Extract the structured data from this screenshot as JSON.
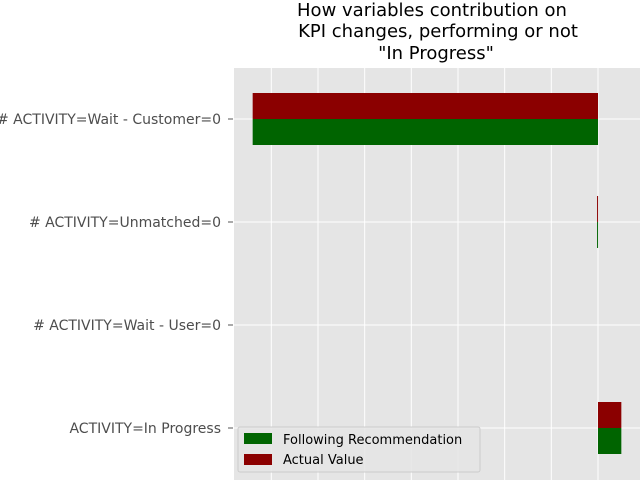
{
  "chart_data": {
    "type": "bar",
    "orientation": "horizontal",
    "title_lines": [
      "How variables contribution on",
      "KPI changes, performing or not",
      "\"In Progress\""
    ],
    "xlabel": "",
    "ylabel": "",
    "categories": [
      "# ACTIVITY=Wait - Customer=0",
      "# ACTIVITY=Unmatched=0",
      "# ACTIVITY=Wait - User=0",
      "ACTIVITY=In Progress"
    ],
    "series": [
      {
        "name": "Following Recommendation",
        "color": "#006400",
        "values": [
          -0.74,
          -0.002,
          0.0,
          0.05
        ]
      },
      {
        "name": "Actual Value",
        "color": "#8b0000",
        "values": [
          -0.74,
          -0.002,
          0.0,
          0.05
        ]
      }
    ],
    "xlim": [
      -0.78,
      0.09
    ],
    "x_grid_values": [
      -0.7,
      -0.6,
      -0.5,
      -0.4,
      -0.3,
      -0.2,
      -0.1,
      0.0
    ],
    "x_tick_labels_visible": false,
    "grid": true,
    "background": "#e5e5e5",
    "legend_position": "lower-left"
  }
}
